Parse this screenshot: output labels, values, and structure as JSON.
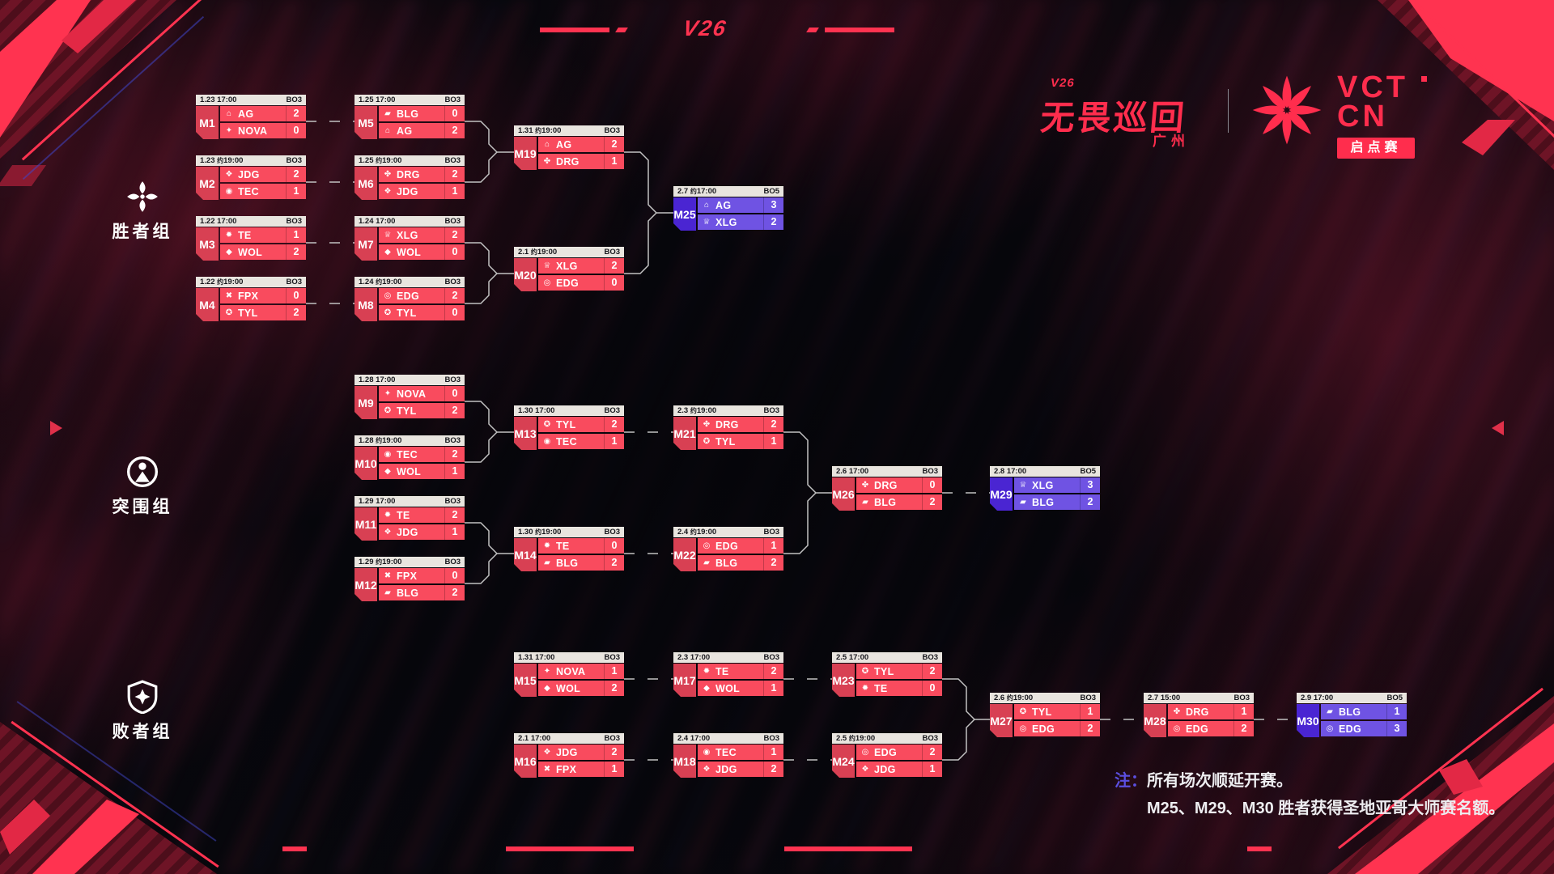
{
  "branding": {
    "top_center_logo": "V26",
    "event": {
      "mark": "V26",
      "title": "无畏巡回",
      "city": "广州"
    },
    "vct": {
      "title": "VCT",
      "region": "CN",
      "badge": "启点赛"
    }
  },
  "groups": [
    {
      "id": "winners",
      "label": "胜者组"
    },
    {
      "id": "breakout",
      "label": "突围组"
    },
    {
      "id": "losers",
      "label": "败者组"
    }
  ],
  "team_icons": {
    "AG": "⌂",
    "NOVA": "✦",
    "JDG": "❖",
    "TEC": "◉",
    "TE": "✹",
    "WOL": "◆",
    "FPX": "✖",
    "TYL": "✪",
    "BLG": "▰",
    "DRG": "✤",
    "XLG": "♕",
    "EDG": "◎"
  },
  "colors": {
    "accent_red": "#ff3350",
    "row_red": "#f94b5e",
    "label_red": "#d84053",
    "row_purple": "#6f53e3",
    "label_purple": "#4a25d2",
    "header_bg": "#e9e5df",
    "connector": "#c2c2c2",
    "note_accent": "#5b4fe0"
  },
  "matches": [
    {
      "id": "M1",
      "group": "winners",
      "date": "1.23",
      "approx": false,
      "time": "17:00",
      "format": "BO3",
      "variant": "red",
      "teams": [
        {
          "name": "AG",
          "score": "2"
        },
        {
          "name": "NOVA",
          "score": "0"
        }
      ]
    },
    {
      "id": "M2",
      "group": "winners",
      "date": "1.23",
      "approx": true,
      "time": "19:00",
      "format": "BO3",
      "variant": "red",
      "teams": [
        {
          "name": "JDG",
          "score": "2"
        },
        {
          "name": "TEC",
          "score": "1"
        }
      ]
    },
    {
      "id": "M3",
      "group": "winners",
      "date": "1.22",
      "approx": false,
      "time": "17:00",
      "format": "BO3",
      "variant": "red",
      "teams": [
        {
          "name": "TE",
          "score": "1"
        },
        {
          "name": "WOL",
          "score": "2"
        }
      ]
    },
    {
      "id": "M4",
      "group": "winners",
      "date": "1.22",
      "approx": true,
      "time": "19:00",
      "format": "BO3",
      "variant": "red",
      "teams": [
        {
          "name": "FPX",
          "score": "0"
        },
        {
          "name": "TYL",
          "score": "2"
        }
      ]
    },
    {
      "id": "M5",
      "group": "winners",
      "date": "1.25",
      "approx": false,
      "time": "17:00",
      "format": "BO3",
      "variant": "red",
      "teams": [
        {
          "name": "BLG",
          "score": "0"
        },
        {
          "name": "AG",
          "score": "2"
        }
      ]
    },
    {
      "id": "M6",
      "group": "winners",
      "date": "1.25",
      "approx": true,
      "time": "19:00",
      "format": "BO3",
      "variant": "red",
      "teams": [
        {
          "name": "DRG",
          "score": "2"
        },
        {
          "name": "JDG",
          "score": "1"
        }
      ]
    },
    {
      "id": "M7",
      "group": "winners",
      "date": "1.24",
      "approx": false,
      "time": "17:00",
      "format": "BO3",
      "variant": "red",
      "teams": [
        {
          "name": "XLG",
          "score": "2"
        },
        {
          "name": "WOL",
          "score": "0"
        }
      ]
    },
    {
      "id": "M8",
      "group": "winners",
      "date": "1.24",
      "approx": true,
      "time": "19:00",
      "format": "BO3",
      "variant": "red",
      "teams": [
        {
          "name": "EDG",
          "score": "2"
        },
        {
          "name": "TYL",
          "score": "0"
        }
      ]
    },
    {
      "id": "M19",
      "group": "winners",
      "date": "1.31",
      "approx": true,
      "time": "19:00",
      "format": "BO3",
      "variant": "red",
      "teams": [
        {
          "name": "AG",
          "score": "2"
        },
        {
          "name": "DRG",
          "score": "1"
        }
      ]
    },
    {
      "id": "M20",
      "group": "winners",
      "date": "2.1",
      "approx": true,
      "time": "19:00",
      "format": "BO3",
      "variant": "red",
      "teams": [
        {
          "name": "XLG",
          "score": "2"
        },
        {
          "name": "EDG",
          "score": "0"
        }
      ]
    },
    {
      "id": "M25",
      "group": "winners",
      "date": "2.7",
      "approx": true,
      "time": "17:00",
      "format": "BO5",
      "variant": "purple",
      "teams": [
        {
          "name": "AG",
          "score": "3"
        },
        {
          "name": "XLG",
          "score": "2"
        }
      ]
    },
    {
      "id": "M9",
      "group": "breakout",
      "date": "1.28",
      "approx": false,
      "time": "17:00",
      "format": "BO3",
      "variant": "red",
      "teams": [
        {
          "name": "NOVA",
          "score": "0"
        },
        {
          "name": "TYL",
          "score": "2"
        }
      ]
    },
    {
      "id": "M10",
      "group": "breakout",
      "date": "1.28",
      "approx": true,
      "time": "19:00",
      "format": "BO3",
      "variant": "red",
      "teams": [
        {
          "name": "TEC",
          "score": "2"
        },
        {
          "name": "WOL",
          "score": "1"
        }
      ]
    },
    {
      "id": "M11",
      "group": "breakout",
      "date": "1.29",
      "approx": false,
      "time": "17:00",
      "format": "BO3",
      "variant": "red",
      "teams": [
        {
          "name": "TE",
          "score": "2"
        },
        {
          "name": "JDG",
          "score": "1"
        }
      ]
    },
    {
      "id": "M12",
      "group": "breakout",
      "date": "1.29",
      "approx": true,
      "time": "19:00",
      "format": "BO3",
      "variant": "red",
      "teams": [
        {
          "name": "FPX",
          "score": "0"
        },
        {
          "name": "BLG",
          "score": "2"
        }
      ]
    },
    {
      "id": "M13",
      "group": "breakout",
      "date": "1.30",
      "approx": false,
      "time": "17:00",
      "format": "BO3",
      "variant": "red",
      "teams": [
        {
          "name": "TYL",
          "score": "2"
        },
        {
          "name": "TEC",
          "score": "1"
        }
      ]
    },
    {
      "id": "M14",
      "group": "breakout",
      "date": "1.30",
      "approx": true,
      "time": "19:00",
      "format": "BO3",
      "variant": "red",
      "teams": [
        {
          "name": "TE",
          "score": "0"
        },
        {
          "name": "BLG",
          "score": "2"
        }
      ]
    },
    {
      "id": "M21",
      "group": "breakout",
      "date": "2.3",
      "approx": true,
      "time": "19:00",
      "format": "BO3",
      "variant": "red",
      "teams": [
        {
          "name": "DRG",
          "score": "2"
        },
        {
          "name": "TYL",
          "score": "1"
        }
      ]
    },
    {
      "id": "M22",
      "group": "breakout",
      "date": "2.4",
      "approx": true,
      "time": "19:00",
      "format": "BO3",
      "variant": "red",
      "teams": [
        {
          "name": "EDG",
          "score": "1"
        },
        {
          "name": "BLG",
          "score": "2"
        }
      ]
    },
    {
      "id": "M26",
      "group": "breakout",
      "date": "2.6",
      "approx": false,
      "time": "17:00",
      "format": "BO3",
      "variant": "red",
      "teams": [
        {
          "name": "DRG",
          "score": "0"
        },
        {
          "name": "BLG",
          "score": "2"
        }
      ]
    },
    {
      "id": "M29",
      "group": "breakout",
      "date": "2.8",
      "approx": false,
      "time": "17:00",
      "format": "BO5",
      "variant": "purple",
      "teams": [
        {
          "name": "XLG",
          "score": "3"
        },
        {
          "name": "BLG",
          "score": "2"
        }
      ]
    },
    {
      "id": "M15",
      "group": "losers",
      "date": "1.31",
      "approx": false,
      "time": "17:00",
      "format": "BO3",
      "variant": "red",
      "teams": [
        {
          "name": "NOVA",
          "score": "1"
        },
        {
          "name": "WOL",
          "score": "2"
        }
      ]
    },
    {
      "id": "M16",
      "group": "losers",
      "date": "2.1",
      "approx": false,
      "time": "17:00",
      "format": "BO3",
      "variant": "red",
      "teams": [
        {
          "name": "JDG",
          "score": "2"
        },
        {
          "name": "FPX",
          "score": "1"
        }
      ]
    },
    {
      "id": "M17",
      "group": "losers",
      "date": "2.3",
      "approx": false,
      "time": "17:00",
      "format": "BO3",
      "variant": "red",
      "teams": [
        {
          "name": "TE",
          "score": "2"
        },
        {
          "name": "WOL",
          "score": "1"
        }
      ]
    },
    {
      "id": "M18",
      "group": "losers",
      "date": "2.4",
      "approx": false,
      "time": "17:00",
      "format": "BO3",
      "variant": "red",
      "teams": [
        {
          "name": "TEC",
          "score": "1"
        },
        {
          "name": "JDG",
          "score": "2"
        }
      ]
    },
    {
      "id": "M23",
      "group": "losers",
      "date": "2.5",
      "approx": false,
      "time": "17:00",
      "format": "BO3",
      "variant": "red",
      "teams": [
        {
          "name": "TYL",
          "score": "2"
        },
        {
          "name": "TE",
          "score": "0"
        }
      ]
    },
    {
      "id": "M24",
      "group": "losers",
      "date": "2.5",
      "approx": true,
      "time": "19:00",
      "format": "BO3",
      "variant": "red",
      "teams": [
        {
          "name": "EDG",
          "score": "2"
        },
        {
          "name": "JDG",
          "score": "1"
        }
      ]
    },
    {
      "id": "M27",
      "group": "losers",
      "date": "2.6",
      "approx": true,
      "time": "19:00",
      "format": "BO3",
      "variant": "red",
      "teams": [
        {
          "name": "TYL",
          "score": "1"
        },
        {
          "name": "EDG",
          "score": "2"
        }
      ]
    },
    {
      "id": "M28",
      "group": "losers",
      "date": "2.7",
      "approx": false,
      "time": "15:00",
      "format": "BO3",
      "variant": "red",
      "teams": [
        {
          "name": "DRG",
          "score": "1"
        },
        {
          "name": "EDG",
          "score": "2"
        }
      ]
    },
    {
      "id": "M30",
      "group": "losers",
      "date": "2.9",
      "approx": false,
      "time": "17:00",
      "format": "BO5",
      "variant": "purple",
      "teams": [
        {
          "name": "BLG",
          "score": "1"
        },
        {
          "name": "EDG",
          "score": "3"
        }
      ]
    }
  ],
  "note": {
    "prefix": "注：",
    "lines": [
      "所有场次顺延开赛。",
      "M25、M29、M30 胜者获得圣地亚哥大师赛名额。"
    ]
  }
}
